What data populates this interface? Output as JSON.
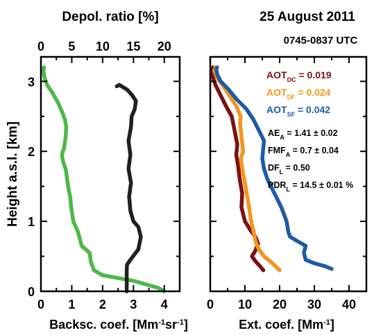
{
  "header": {
    "date": "25 August 2011",
    "time": "0745-0837 UTC"
  },
  "chart_data": [
    {
      "type": "line",
      "panel": "backscatter-and-depolarization",
      "ylabel": "Height a.s.l. [km]",
      "ylim": [
        0,
        3.35
      ],
      "yticks": [
        "0",
        "1",
        "2",
        "3"
      ],
      "x_bottom": {
        "label_parts": [
          "Backsc. coef. [Mm",
          "-1",
          "sr",
          "-1",
          "]"
        ],
        "range": [
          0,
          4.5
        ],
        "ticks": [
          "0",
          "1",
          "2",
          "3",
          "4"
        ]
      },
      "x_top": {
        "label": "Depol. ratio [%]",
        "range": [
          0,
          22.5
        ],
        "ticks": [
          "0",
          "5",
          "10",
          "15",
          "20"
        ]
      },
      "series": [
        {
          "axis": "bottom",
          "color": "#4db848",
          "points": [
            [
              4.0,
              0.0
            ],
            [
              3.8,
              0.05
            ],
            [
              3.0,
              0.15
            ],
            [
              2.0,
              0.23
            ],
            [
              1.72,
              0.3
            ],
            [
              1.62,
              0.42
            ],
            [
              1.58,
              0.55
            ],
            [
              1.45,
              0.6
            ],
            [
              1.32,
              0.65
            ],
            [
              1.28,
              0.72
            ],
            [
              1.2,
              0.85
            ],
            [
              1.05,
              1.0
            ],
            [
              0.98,
              1.2
            ],
            [
              0.95,
              1.35
            ],
            [
              0.9,
              1.45
            ],
            [
              0.85,
              1.6
            ],
            [
              0.8,
              1.75
            ],
            [
              0.72,
              1.85
            ],
            [
              0.68,
              1.95
            ],
            [
              0.75,
              2.05
            ],
            [
              0.8,
              2.2
            ],
            [
              0.82,
              2.35
            ],
            [
              0.78,
              2.45
            ],
            [
              0.7,
              2.55
            ],
            [
              0.55,
              2.7
            ],
            [
              0.35,
              2.85
            ],
            [
              0.2,
              2.95
            ],
            [
              0.12,
              3.05
            ],
            [
              0.08,
              3.15
            ],
            [
              0.1,
              3.2
            ]
          ]
        },
        {
          "axis": "top",
          "color": "#231f20",
          "points": [
            [
              13.9,
              0.0
            ],
            [
              13.9,
              0.15
            ],
            [
              13.9,
              0.3
            ],
            [
              13.95,
              0.38
            ],
            [
              14.5,
              0.45
            ],
            [
              15.8,
              0.6
            ],
            [
              16.2,
              0.78
            ],
            [
              15.8,
              0.92
            ],
            [
              15.0,
              1.0
            ],
            [
              14.5,
              1.15
            ],
            [
              14.3,
              1.35
            ],
            [
              14.6,
              1.55
            ],
            [
              14.2,
              1.75
            ],
            [
              14.5,
              1.95
            ],
            [
              14.2,
              2.15
            ],
            [
              14.6,
              2.35
            ],
            [
              14.7,
              2.5
            ],
            [
              15.2,
              2.6
            ],
            [
              15.4,
              2.72
            ],
            [
              14.8,
              2.8
            ],
            [
              14.0,
              2.88
            ],
            [
              12.7,
              2.95
            ],
            [
              12.3,
              2.93
            ]
          ]
        }
      ]
    },
    {
      "type": "line",
      "panel": "extinction",
      "ylim": [
        0,
        3.35
      ],
      "yticks": [
        "0",
        "1",
        "2",
        "3"
      ],
      "x_bottom": {
        "label_parts": [
          "Ext. coef. [Mm",
          "-1",
          "]"
        ],
        "range": [
          0,
          45
        ],
        "ticks": [
          "0",
          "10",
          "20",
          "30",
          "40"
        ]
      },
      "series": [
        {
          "name_parts": [
            "AOT",
            "DC",
            " = 0.019"
          ],
          "color": "#7b1113",
          "points": [
            [
              15.3,
              0.3
            ],
            [
              14.5,
              0.35
            ],
            [
              13.2,
              0.42
            ],
            [
              12.0,
              0.5
            ],
            [
              13.0,
              0.58
            ],
            [
              13.8,
              0.68
            ],
            [
              13.0,
              0.78
            ],
            [
              11.5,
              0.88
            ],
            [
              10.0,
              1.0
            ],
            [
              9.0,
              1.2
            ],
            [
              9.2,
              1.4
            ],
            [
              8.5,
              1.6
            ],
            [
              8.0,
              1.8
            ],
            [
              7.5,
              1.95
            ],
            [
              7.8,
              2.1
            ],
            [
              7.0,
              2.3
            ],
            [
              6.2,
              2.5
            ],
            [
              4.5,
              2.65
            ],
            [
              3.0,
              2.8
            ],
            [
              1.5,
              2.95
            ],
            [
              0.8,
              3.05
            ],
            [
              0.5,
              3.15
            ],
            [
              0.8,
              3.2
            ]
          ]
        },
        {
          "name_parts": [
            "AOT",
            "DF",
            " = 0.024"
          ],
          "color": "#f7941d",
          "points": [
            [
              20.0,
              0.3
            ],
            [
              19.0,
              0.35
            ],
            [
              17.5,
              0.42
            ],
            [
              15.5,
              0.5
            ],
            [
              14.0,
              0.6
            ],
            [
              13.0,
              0.72
            ],
            [
              12.5,
              0.85
            ],
            [
              11.8,
              1.0
            ],
            [
              11.2,
              1.2
            ],
            [
              10.5,
              1.4
            ],
            [
              9.8,
              1.6
            ],
            [
              9.2,
              1.75
            ],
            [
              8.8,
              1.9
            ],
            [
              9.5,
              2.0
            ],
            [
              9.0,
              2.2
            ],
            [
              8.6,
              2.4
            ],
            [
              8.8,
              2.5
            ],
            [
              7.5,
              2.65
            ],
            [
              5.5,
              2.8
            ],
            [
              3.5,
              2.95
            ],
            [
              2.0,
              3.05
            ],
            [
              1.2,
              3.15
            ],
            [
              1.5,
              3.2
            ]
          ]
        },
        {
          "name_parts": [
            "AOT",
            "SF",
            " = 0.042"
          ],
          "color": "#1f5aa6",
          "points": [
            [
              35.0,
              0.32
            ],
            [
              33.0,
              0.36
            ],
            [
              30.0,
              0.4
            ],
            [
              27.5,
              0.45
            ],
            [
              27.0,
              0.55
            ],
            [
              27.5,
              0.65
            ],
            [
              25.0,
              0.72
            ],
            [
              23.0,
              0.78
            ],
            [
              22.5,
              0.85
            ],
            [
              22.0,
              1.0
            ],
            [
              20.5,
              1.2
            ],
            [
              18.5,
              1.4
            ],
            [
              16.5,
              1.6
            ],
            [
              15.5,
              1.75
            ],
            [
              15.0,
              1.9
            ],
            [
              15.2,
              2.0
            ],
            [
              15.5,
              2.15
            ],
            [
              14.0,
              2.3
            ],
            [
              12.5,
              2.45
            ],
            [
              10.5,
              2.6
            ],
            [
              7.5,
              2.75
            ],
            [
              5.0,
              2.9
            ],
            [
              3.0,
              3.0
            ],
            [
              2.0,
              3.1
            ],
            [
              1.7,
              3.18
            ],
            [
              2.0,
              3.2
            ]
          ]
        }
      ],
      "annotations": [
        {
          "parts": [
            "AE",
            "A",
            " = 1.41 ± 0.02"
          ]
        },
        {
          "parts": [
            "FMF",
            "A",
            " = 0.7 ± 0.04"
          ]
        },
        {
          "parts": [
            "DF",
            "L",
            " = 0.50"
          ]
        },
        {
          "parts": [
            "PDR",
            "L",
            " = 14.5 ± 0.01 %"
          ]
        }
      ]
    }
  ]
}
